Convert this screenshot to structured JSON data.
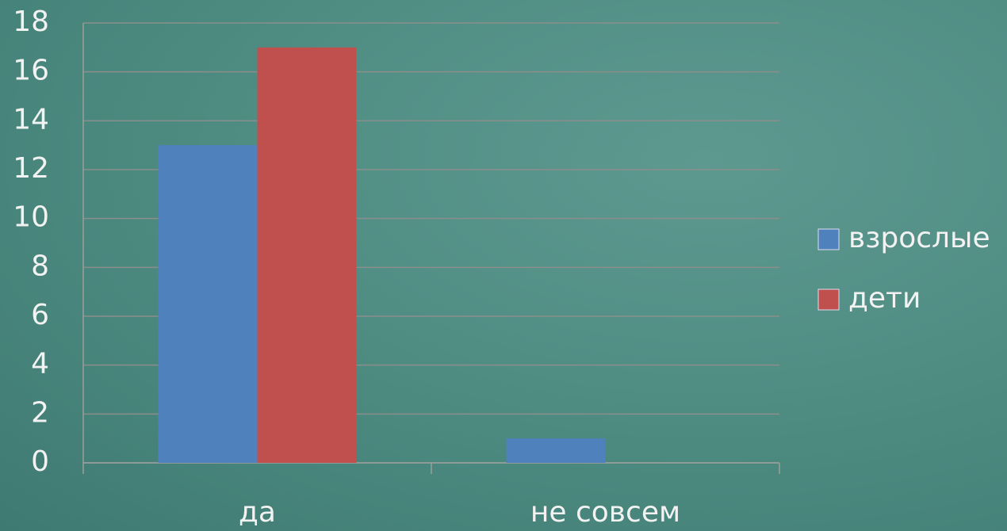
{
  "chart_data": {
    "type": "bar",
    "categories": [
      "да",
      "не совсем"
    ],
    "series": [
      {
        "name": "взрослые",
        "color": "#4f81bd",
        "values": [
          13,
          1
        ]
      },
      {
        "name": "дети",
        "color": "#c0504d",
        "values": [
          17,
          0
        ]
      }
    ],
    "ylim": [
      0,
      18
    ],
    "yticks": [
      0,
      2,
      4,
      6,
      8,
      10,
      12,
      14,
      16,
      18
    ],
    "grid": true,
    "legend": "right"
  }
}
